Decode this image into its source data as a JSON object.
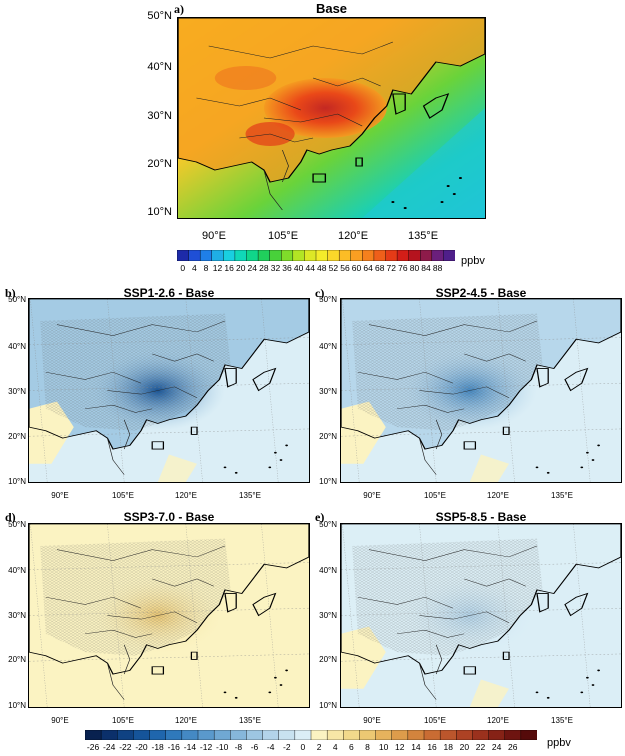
{
  "panels": [
    {
      "letter": "a)",
      "title": "Base",
      "kind": "abs",
      "lat_labels": [
        "50°N",
        "40°N",
        "30°N",
        "20°N",
        "10°N"
      ],
      "lon_labels": [
        "90°E",
        "105°E",
        "120°E",
        "135°E"
      ]
    },
    {
      "letter": "b)",
      "title": "SSP1-2.6 - Base",
      "kind": "diff",
      "diff_level": -20,
      "lat_labels": [
        "50°N",
        "40°N",
        "30°N",
        "20°N",
        "10°N"
      ],
      "lon_labels": [
        "90°E",
        "105°E",
        "120°E",
        "135°E"
      ]
    },
    {
      "letter": "c)",
      "title": "SSP2-4.5 - Base",
      "kind": "diff",
      "diff_level": -10,
      "lat_labels": [
        "50°N",
        "40°N",
        "30°N",
        "20°N",
        "10°N"
      ],
      "lon_labels": [
        "90°E",
        "105°E",
        "120°E",
        "135°E"
      ]
    },
    {
      "letter": "d)",
      "title": "SSP3-7.0 - Base",
      "kind": "diff",
      "diff_level": 5,
      "lat_labels": [
        "50°N",
        "40°N",
        "30°N",
        "20°N",
        "10°N"
      ],
      "lon_labels": [
        "90°E",
        "105°E",
        "120°E",
        "135°E"
      ]
    },
    {
      "letter": "e)",
      "title": "SSP5-8.5 - Base",
      "kind": "diff",
      "diff_level": -3,
      "lat_labels": [
        "50°N",
        "40°N",
        "30°N",
        "20°N",
        "10°N"
      ],
      "lon_labels": [
        "90°E",
        "105°E",
        "120°E",
        "135°E"
      ]
    }
  ],
  "colorbar_top": {
    "ticks": [
      "0",
      "4",
      "8",
      "12",
      "16",
      "20",
      "24",
      "28",
      "32",
      "36",
      "40",
      "44",
      "48",
      "52",
      "56",
      "60",
      "64",
      "68",
      "72",
      "76",
      "80",
      "84",
      "88"
    ],
    "unit": "ppbv",
    "colors": [
      "#1d2aa8",
      "#1f4fd6",
      "#1f7fe8",
      "#1faee6",
      "#19cfe0",
      "#10d8b8",
      "#10d68a",
      "#20cf5c",
      "#48d13a",
      "#7fdc2a",
      "#b3e524",
      "#dde826",
      "#f4ec2a",
      "#fbd82a",
      "#fcbd26",
      "#f99f22",
      "#f5801d",
      "#ef5f1a",
      "#e53b17",
      "#d31e18",
      "#b5131e",
      "#8e1b4a",
      "#6b1f7c",
      "#4f1f8a"
    ]
  },
  "colorbar_bottom": {
    "ticks": [
      "-26",
      "-24",
      "-22",
      "-20",
      "-18",
      "-16",
      "-14",
      "-12",
      "-10",
      "-8",
      "-6",
      "-4",
      "-2",
      "0",
      "2",
      "4",
      "6",
      "8",
      "10",
      "12",
      "14",
      "16",
      "18",
      "20",
      "22",
      "24",
      "26"
    ],
    "unit": "ppbv",
    "colors": [
      "#08214f",
      "#0b306b",
      "#0f4283",
      "#15549a",
      "#1f66ad",
      "#2f79bb",
      "#4489c4",
      "#5a99cc",
      "#70a8d3",
      "#86b7db",
      "#9dc6e2",
      "#b3d4ea",
      "#c8e2f0",
      "#dbeef6",
      "#fbf3c2",
      "#f7e7a6",
      "#f2d98b",
      "#ecc873",
      "#e6b35d",
      "#dd9c4b",
      "#d3843d",
      "#c96c33",
      "#bc562c",
      "#ad4224",
      "#9b311d",
      "#862216",
      "#6e1410",
      "#550a0a"
    ]
  }
}
